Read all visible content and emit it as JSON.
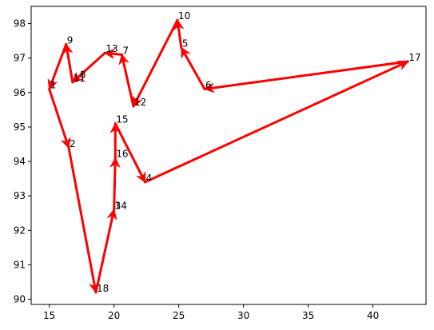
{
  "chart_data": {
    "type": "line",
    "title": "",
    "xlabel": "",
    "ylabel": "",
    "xlim": [
      13.6,
      44.1
    ],
    "ylim": [
      89.85,
      98.5
    ],
    "xticks": [
      15,
      20,
      25,
      30,
      35,
      40
    ],
    "yticks": [
      90,
      91,
      92,
      93,
      94,
      95,
      96,
      97,
      98
    ],
    "grid": false,
    "line_color": "#ff0000",
    "points": [
      {
        "label": "1",
        "x": 15.0,
        "y": 96.1
      },
      {
        "label": "2",
        "x": 16.5,
        "y": 94.4
      },
      {
        "label": "3",
        "x": 20.0,
        "y": 92.6
      },
      {
        "label": "4",
        "x": 22.4,
        "y": 93.4
      },
      {
        "label": "5",
        "x": 25.2,
        "y": 97.3
      },
      {
        "label": "6",
        "x": 27.0,
        "y": 96.1
      },
      {
        "label": "7",
        "x": 20.6,
        "y": 97.1
      },
      {
        "label": "8",
        "x": 17.3,
        "y": 96.4
      },
      {
        "label": "9",
        "x": 16.3,
        "y": 97.4
      },
      {
        "label": "10",
        "x": 24.9,
        "y": 98.1
      },
      {
        "label": "11",
        "x": 16.8,
        "y": 96.3
      },
      {
        "label": "12",
        "x": 21.5,
        "y": 95.6
      },
      {
        "label": "13",
        "x": 19.3,
        "y": 97.15
      },
      {
        "label": "14",
        "x": 20.0,
        "y": 92.6
      },
      {
        "label": "15",
        "x": 20.1,
        "y": 95.1
      },
      {
        "label": "16",
        "x": 20.1,
        "y": 94.1
      },
      {
        "label": "17",
        "x": 42.7,
        "y": 96.9
      },
      {
        "label": "18",
        "x": 18.6,
        "y": 90.2
      }
    ],
    "path": [
      "1",
      "2",
      "18",
      "14",
      "16",
      "15",
      "4",
      "17",
      "6",
      "5",
      "10",
      "12",
      "7",
      "13",
      "11",
      "9",
      "1"
    ]
  }
}
